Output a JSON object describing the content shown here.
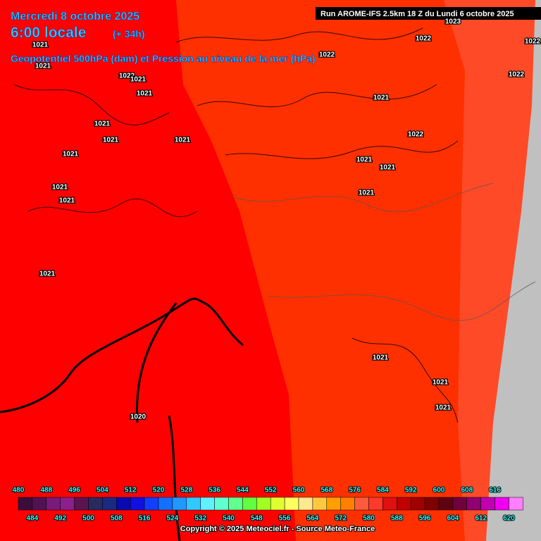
{
  "header": {
    "date": "Mercredi 8 octobre 2025",
    "time": "6:00 locale",
    "offset": "(+ 34h)",
    "subtitle": "Geopotentiel 500hPa (dam) et Pression au niveau de la mer (hPa)",
    "run": "Run AROME-IFS 2.5km 18 Z du Lundi 6 octobre 2025"
  },
  "pressure_labels": [
    1021,
    1021,
    1022,
    1021,
    1021,
    1021,
    1021,
    1021,
    1021,
    1021,
    1021,
    1021,
    1020,
    1023,
    1022,
    1022,
    1022,
    1022,
    1021,
    1022,
    1021,
    1021,
    1021,
    1021,
    1021,
    1021
  ],
  "scale": {
    "values": [
      480,
      484,
      488,
      492,
      496,
      500,
      504,
      508,
      512,
      516,
      520,
      524,
      528,
      532,
      536,
      540,
      544,
      548,
      552,
      556,
      560,
      564,
      568,
      572,
      576,
      580,
      584,
      588,
      592,
      596,
      600,
      604,
      608,
      612,
      616,
      620
    ],
    "colors": [
      "#3c0d3c",
      "#521252",
      "#7a1a7a",
      "#8c1f8c",
      "#5a1450",
      "#2a2a60",
      "#1a2a80",
      "#0a0ab0",
      "#1010e0",
      "#1040ff",
      "#1470ff",
      "#2098ff",
      "#30c8ff",
      "#60f0ff",
      "#60ffd0",
      "#60ff90",
      "#60ff40",
      "#a0ff20",
      "#e0ff30",
      "#ffff60",
      "#ffe890",
      "#ffc840",
      "#ffa000",
      "#ff8000",
      "#ff5a3c",
      "#ff3a2a",
      "#e01010",
      "#c00000",
      "#a00000",
      "#800000",
      "#600010",
      "#700040",
      "#900070",
      "#c000b0",
      "#f000f0",
      "#ff80ff"
    ]
  },
  "copyright": "Copyright © 2025 Meteociel.fr - Source Meteo-France"
}
